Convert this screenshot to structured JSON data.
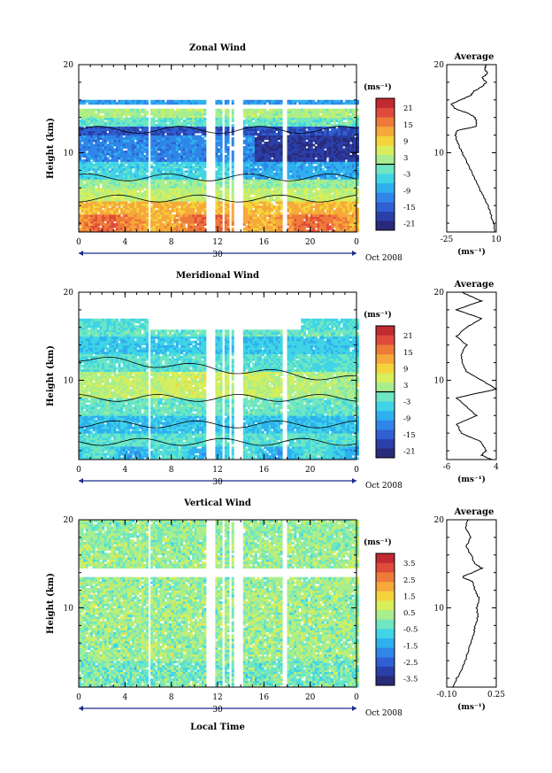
{
  "figure": {
    "date_label": "Oct 2008",
    "day_label": "30",
    "xlabel": "Local Time"
  },
  "colormap": [
    "#2a2a7a",
    "#2a3fa8",
    "#2f5fd2",
    "#2f86e8",
    "#2fb0ee",
    "#3fd4e6",
    "#6ee6c2",
    "#a8ee8e",
    "#d8ee5a",
    "#f4d43a",
    "#f6a83a",
    "#ee7a3a",
    "#e04a3a",
    "#c02a30"
  ],
  "chart_data": [
    {
      "type": "heatmap",
      "title": "Zonal Wind",
      "ylabel": "Height (km)",
      "xlim": [
        0,
        24
      ],
      "ylim": [
        1,
        20
      ],
      "x_ticks": [
        "0",
        "4",
        "8",
        "12",
        "16",
        "20",
        "0"
      ],
      "y_ticks": [
        "20",
        "10"
      ],
      "colorbar": {
        "unit": "(ms⁻¹)",
        "ticks": [
          "21",
          "15",
          "9",
          "3",
          "-3",
          "-9",
          "-15",
          "-21"
        ],
        "range": [
          -24,
          24
        ],
        "contour_mark": 0
      },
      "profile": {
        "title": "Average",
        "xlabel": "(ms⁻¹)",
        "xlim": [
          -25,
          10
        ],
        "x_ticks": [
          "-25",
          "10"
        ],
        "y_ticks": [
          "20",
          "10"
        ],
        "height": [
          1,
          2,
          3,
          4,
          5,
          6,
          7,
          8,
          9,
          10,
          11,
          12,
          12.5,
          13,
          13.5,
          14,
          14.5,
          15,
          15.5,
          16,
          16.5,
          17,
          17.5,
          18,
          18.5,
          19,
          19.5,
          20
        ],
        "value": [
          9,
          8,
          6,
          4,
          1,
          -2,
          -5,
          -8,
          -11,
          -14,
          -17,
          -19,
          -18,
          -4,
          -4,
          -5,
          -10,
          -19,
          -22,
          -15,
          -8,
          -6,
          0,
          3,
          0,
          4,
          2,
          3
        ]
      }
    },
    {
      "type": "heatmap",
      "title": "Meridional Wind",
      "ylabel": "Height (km)",
      "xlim": [
        0,
        24
      ],
      "ylim": [
        1,
        20
      ],
      "x_ticks": [
        "0",
        "4",
        "8",
        "12",
        "16",
        "20",
        "0"
      ],
      "y_ticks": [
        "20",
        "10"
      ],
      "colorbar": {
        "unit": "(ms⁻¹)",
        "ticks": [
          "21",
          "15",
          "9",
          "3",
          "-3",
          "-9",
          "-15",
          "-21"
        ],
        "range": [
          -24,
          24
        ],
        "contour_mark": 0
      },
      "profile": {
        "title": "Average",
        "xlabel": "(ms⁻¹)",
        "xlim": [
          -6,
          4
        ],
        "x_ticks": [
          "-6",
          "4"
        ],
        "y_ticks": [
          "20",
          "10"
        ],
        "height": [
          1,
          1.5,
          2,
          3,
          4,
          5,
          6,
          7,
          8,
          9,
          10,
          11,
          12,
          13,
          14,
          15,
          16,
          17,
          18,
          19,
          19.5,
          20
        ],
        "value": [
          3,
          1,
          2,
          1,
          -3,
          -4,
          0,
          -2,
          -4,
          4,
          1,
          -2,
          -3,
          -3,
          -2,
          -4,
          -2,
          1,
          -4,
          1,
          -1,
          -3
        ]
      }
    },
    {
      "type": "heatmap",
      "title": "Vertical Wind",
      "ylabel": "Height (km)",
      "xlim": [
        0,
        24
      ],
      "ylim": [
        1,
        20
      ],
      "x_ticks": [
        "0",
        "4",
        "8",
        "12",
        "16",
        "20",
        "0"
      ],
      "y_ticks": [
        "20",
        "10"
      ],
      "colorbar": {
        "unit": "(ms⁻¹)",
        "ticks": [
          "3.5",
          "2.5",
          "1.5",
          "0.5",
          "-0.5",
          "-1.5",
          "-2.5",
          "-3.5"
        ],
        "range": [
          -4,
          4
        ],
        "contour_mark": null
      },
      "profile": {
        "title": "Average",
        "xlabel": "(ms⁻¹)",
        "xlim": [
          -0.1,
          0.25
        ],
        "x_ticks": [
          "-0.10",
          "0.25"
        ],
        "y_ticks": [
          "20",
          "10"
        ],
        "height": [
          1,
          2,
          3,
          4,
          5,
          6,
          7,
          8,
          9,
          10,
          11,
          12,
          13,
          13.5,
          14,
          14.5,
          15,
          16,
          17,
          18,
          19,
          20
        ],
        "value": [
          -0.06,
          -0.03,
          0.01,
          0.03,
          0.05,
          0.07,
          0.09,
          0.1,
          0.12,
          0.11,
          0.13,
          0.1,
          0.08,
          0.01,
          0.08,
          0.15,
          0.1,
          0.07,
          0.04,
          0.07,
          0.03,
          0.05
        ]
      }
    }
  ]
}
